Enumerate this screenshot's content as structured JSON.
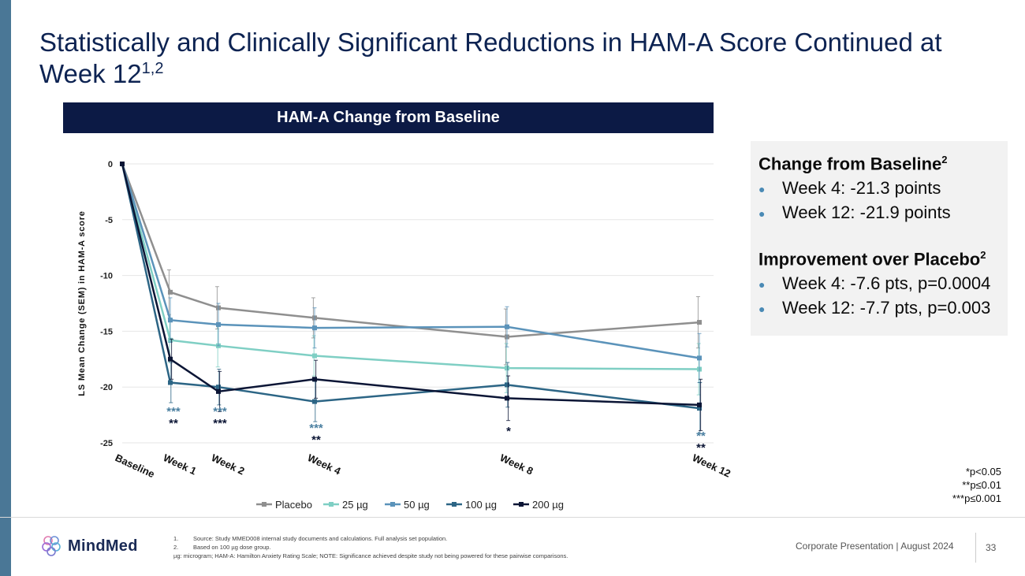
{
  "slide": {
    "title": "Statistically and Clinically Significant Reductions in HAM-A Score Continued at Week 12",
    "title_superscript": "1,2",
    "chart_header": "HAM-A Change from Baseline",
    "page_number": "33",
    "corporate_line": "Corporate Presentation | August 2024",
    "brand_name": "MindMed",
    "colors": {
      "accent_band": "#4a7796",
      "header_bar": "#0c1a45",
      "title": "#0d2352"
    }
  },
  "info_box": {
    "section1_title": "Change from Baseline",
    "section1_sup": "2",
    "section1_items": [
      "Week 4: -21.3 points",
      "Week 12: -21.9 points"
    ],
    "section2_title": "Improvement over Placebo",
    "section2_sup": "2",
    "section2_items": [
      "Week 4: -7.6 pts, p=0.0004",
      "Week 12: -7.7 pts, p=0.003"
    ]
  },
  "significance_legend": [
    "*p<0.05",
    "**p≤0.01",
    "***p≤0.001"
  ],
  "footnotes": [
    {
      "num": "1.",
      "text": "Source: Study MMED008 internal study documents and calculations. Full analysis set population."
    },
    {
      "num": "2.",
      "text": "Based on 100 µg dose group."
    },
    {
      "num": "",
      "text": "µg: microgram; HAM-A: Hamilton Anxiety Rating Scale; NOTE: Significance achieved despite study not being powered for these pairwise comparisons."
    }
  ],
  "chart_data": {
    "type": "line",
    "ylabel": "LS Mean Change (SEM) in HAM-A score",
    "xlabel": "",
    "ylim": [
      -25,
      0
    ],
    "yticks": [
      0,
      -5,
      -10,
      -15,
      -20,
      -25
    ],
    "grid": true,
    "legend_position": "bottom",
    "categories": [
      "Baseline",
      "Week 1",
      "Week 2",
      "Week 4",
      "Week 8",
      "Week 12"
    ],
    "x_weeks": [
      0,
      1,
      2,
      4,
      8,
      12
    ],
    "series": [
      {
        "name": "Placebo",
        "color": "#8f8f8f",
        "values": [
          0,
          -11.5,
          -12.9,
          -13.8,
          -15.5,
          -14.2
        ],
        "sem": [
          0,
          2.0,
          1.9,
          1.8,
          2.5,
          2.3
        ]
      },
      {
        "name": "25 µg",
        "color": "#7fcfc4",
        "values": [
          0,
          -15.8,
          -16.3,
          -17.2,
          -18.3,
          -18.4
        ],
        "sem": [
          0,
          2.0,
          1.9,
          1.8,
          2.2,
          2.3
        ]
      },
      {
        "name": "50 µg",
        "color": "#5b93ba",
        "values": [
          0,
          -14.0,
          -14.4,
          -14.7,
          -14.6,
          -17.4
        ],
        "sem": [
          0,
          2.0,
          1.9,
          1.8,
          1.8,
          2.2
        ]
      },
      {
        "name": "100 µg",
        "color": "#2c6585",
        "values": [
          0,
          -19.6,
          -20.0,
          -21.3,
          -19.8,
          -21.9
        ],
        "sem": [
          0,
          1.8,
          1.6,
          1.8,
          2.0,
          2.3
        ]
      },
      {
        "name": "200 µg",
        "color": "#0b1535",
        "values": [
          0,
          -17.5,
          -20.4,
          -19.3,
          -21.0,
          -21.6
        ],
        "sem": [
          0,
          1.8,
          1.8,
          1.7,
          2.0,
          2.3
        ]
      }
    ],
    "significance_markers": [
      {
        "week": 1,
        "lines": [
          {
            "text": "***",
            "color": "#4a7fa0"
          },
          {
            "text": "**",
            "color": "#0b1535"
          }
        ]
      },
      {
        "week": 2,
        "lines": [
          {
            "text": "***",
            "color": "#4a7fa0"
          },
          {
            "text": "***",
            "color": "#0b1535"
          }
        ]
      },
      {
        "week": 4,
        "lines": [
          {
            "text": "***",
            "color": "#4a7fa0"
          },
          {
            "text": "**",
            "color": "#0b1535"
          }
        ]
      },
      {
        "week": 8,
        "lines": [
          {
            "text": "*",
            "color": "#0b1535"
          }
        ]
      },
      {
        "week": 12,
        "lines": [
          {
            "text": "**",
            "color": "#4a7fa0"
          },
          {
            "text": "**",
            "color": "#0b1535"
          }
        ]
      }
    ]
  }
}
